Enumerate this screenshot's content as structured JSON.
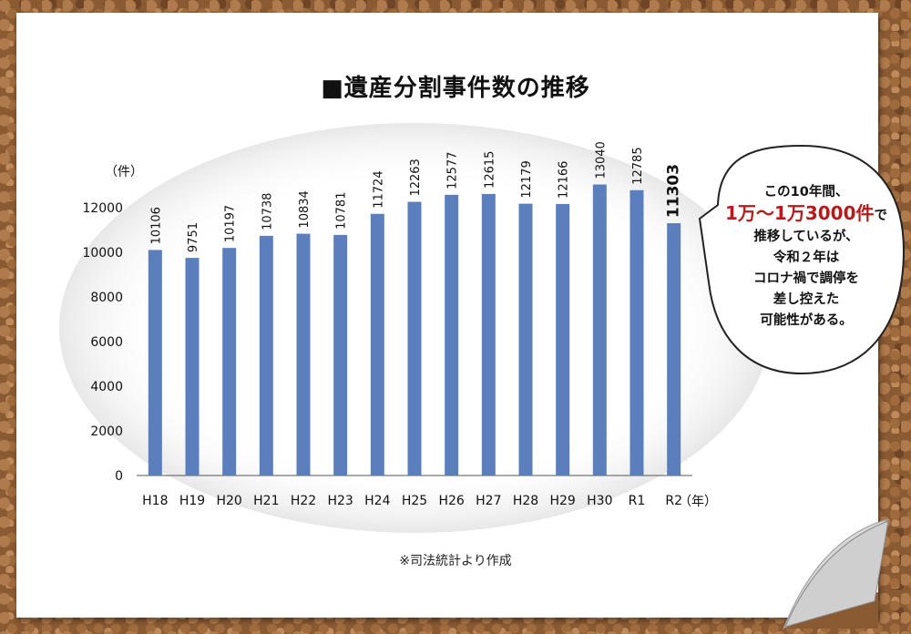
{
  "title": "■遺産分割事件数の推移",
  "source_note": "※司法統計より作成",
  "bubble": {
    "line1": "この10年間、",
    "highlight": "1万～1万3000件",
    "line2_suffix": "で",
    "line3": "推移しているが、",
    "line4": "令和２年は",
    "line5": "コロナ禍で調停を",
    "line6": "差し控えた",
    "line7": "可能性がある。"
  },
  "colors": {
    "bar": "#5b7fbd",
    "highlight": "#b51b1b"
  },
  "chart_data": {
    "type": "bar",
    "title": "■遺産分割事件数の推移",
    "ylabel": "（件）",
    "xlabel": "（年）",
    "categories": [
      "H18",
      "H19",
      "H20",
      "H21",
      "H22",
      "H23",
      "H24",
      "H25",
      "H26",
      "H27",
      "H28",
      "H29",
      "H30",
      "R1",
      "R2"
    ],
    "values": [
      10106,
      9751,
      10197,
      10738,
      10834,
      10781,
      11724,
      12263,
      12577,
      12615,
      12179,
      12166,
      13040,
      12785,
      11303
    ],
    "yticks": [
      "0",
      "2000",
      "4000",
      "6000",
      "8000",
      "10000",
      "12000"
    ],
    "ylim": [
      0,
      14000
    ],
    "grid": false
  }
}
